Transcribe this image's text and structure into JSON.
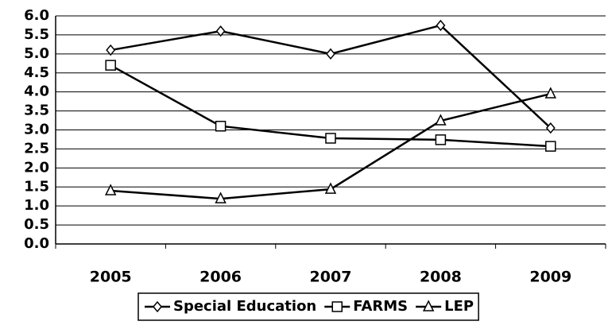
{
  "chart_data": {
    "type": "line",
    "categories": [
      "2005",
      "2006",
      "2007",
      "2008",
      "2009"
    ],
    "series": [
      {
        "name": "Special Education",
        "color": "#000000",
        "marker": "diamond",
        "values": [
          5.1,
          5.6,
          5.0,
          5.75,
          3.05
        ]
      },
      {
        "name": "FARMS",
        "color": "#000000",
        "marker": "square",
        "values": [
          4.7,
          3.1,
          2.78,
          2.74,
          2.57
        ]
      },
      {
        "name": "LEP",
        "color": "#000000",
        "marker": "triangle",
        "values": [
          1.4,
          1.19,
          1.44,
          3.24,
          3.95
        ]
      }
    ],
    "ylim": [
      0,
      6
    ],
    "yticks": [
      {
        "value": 0,
        "label": "0.0"
      },
      0.5,
      {
        "value": 1,
        "label": "1.0"
      },
      1.5,
      {
        "value": 2,
        "label": "2.0"
      },
      2.5,
      {
        "value": 3,
        "label": "3.0"
      },
      3.5,
      {
        "value": 4,
        "label": "4.0"
      },
      4.5,
      {
        "value": 5,
        "label": "5.0"
      },
      5.5,
      {
        "value": 6,
        "label": "6.0"
      }
    ],
    "grid": true,
    "legend": "bottom"
  }
}
